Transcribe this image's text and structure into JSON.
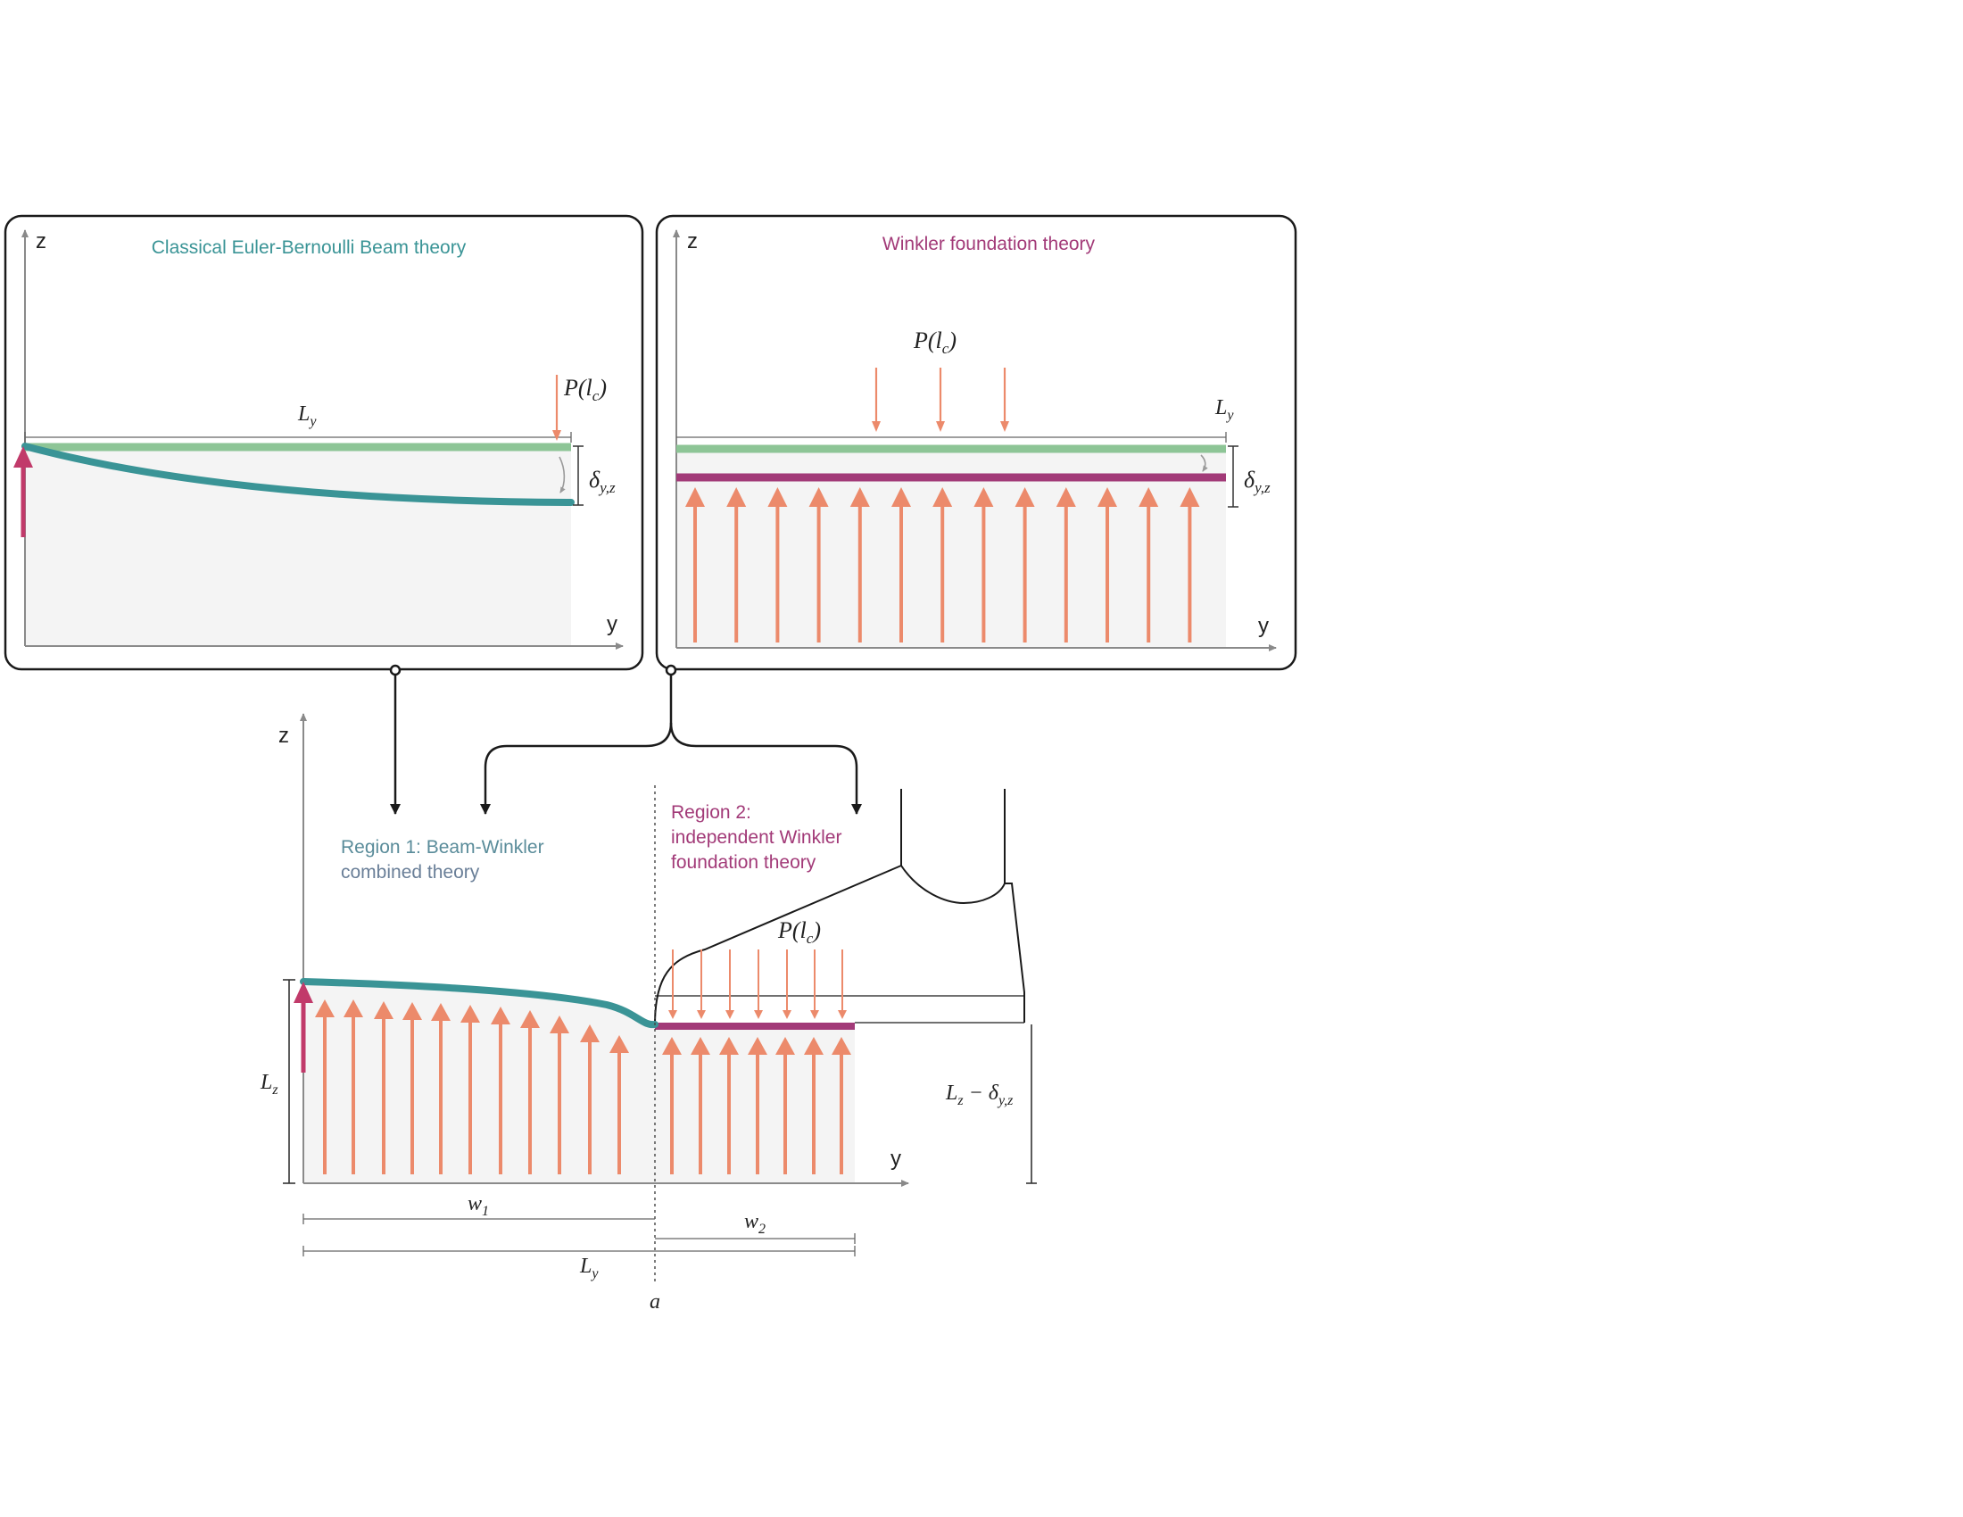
{
  "panel_left": {
    "title": "Classical Euler-Bernoulli Beam theory",
    "axis_z": "z",
    "axis_y": "y",
    "length_label": "L",
    "length_sub": "y",
    "load_label": "P(l",
    "load_sub": "c",
    "load_close": ")",
    "deflection_label": "δ",
    "deflection_sub": "y,z"
  },
  "panel_right": {
    "title": "Winkler foundation theory",
    "axis_z": "z",
    "axis_y": "y",
    "length_label": "L",
    "length_sub": "y",
    "load_label": "P(l",
    "load_sub": "c",
    "load_close": ")",
    "deflection_label": "δ",
    "deflection_sub": "y,z"
  },
  "bottom": {
    "axis_z": "z",
    "axis_y": "y",
    "region1_line1": "Region 1: Beam-Winkler",
    "region1_line2": "combined theory",
    "region2_line1": "Region 2:",
    "region2_line2": "independent Winkler",
    "region2_line3": "foundation theory",
    "load_label": "P(l",
    "load_sub": "c",
    "load_close": ")",
    "height_label": "L",
    "height_sub": "z",
    "height_right_main": "L",
    "height_right_sub": "z",
    "height_right_minus": " − δ",
    "height_right_sub2": "y,z",
    "w1": "w",
    "w1_sub": "1",
    "w2": "w",
    "w2_sub": "2",
    "ly": "L",
    "ly_sub": "y",
    "a_label": "a"
  },
  "colors": {
    "teal": "#3a9496",
    "green": "#8dc596",
    "magenta": "#a23a78",
    "salmon": "#ec8a6b",
    "crimson": "#c13a6a",
    "axis": "#8a8a8a",
    "shade": "#f4f4f4",
    "frame": "#1a1a1a"
  }
}
